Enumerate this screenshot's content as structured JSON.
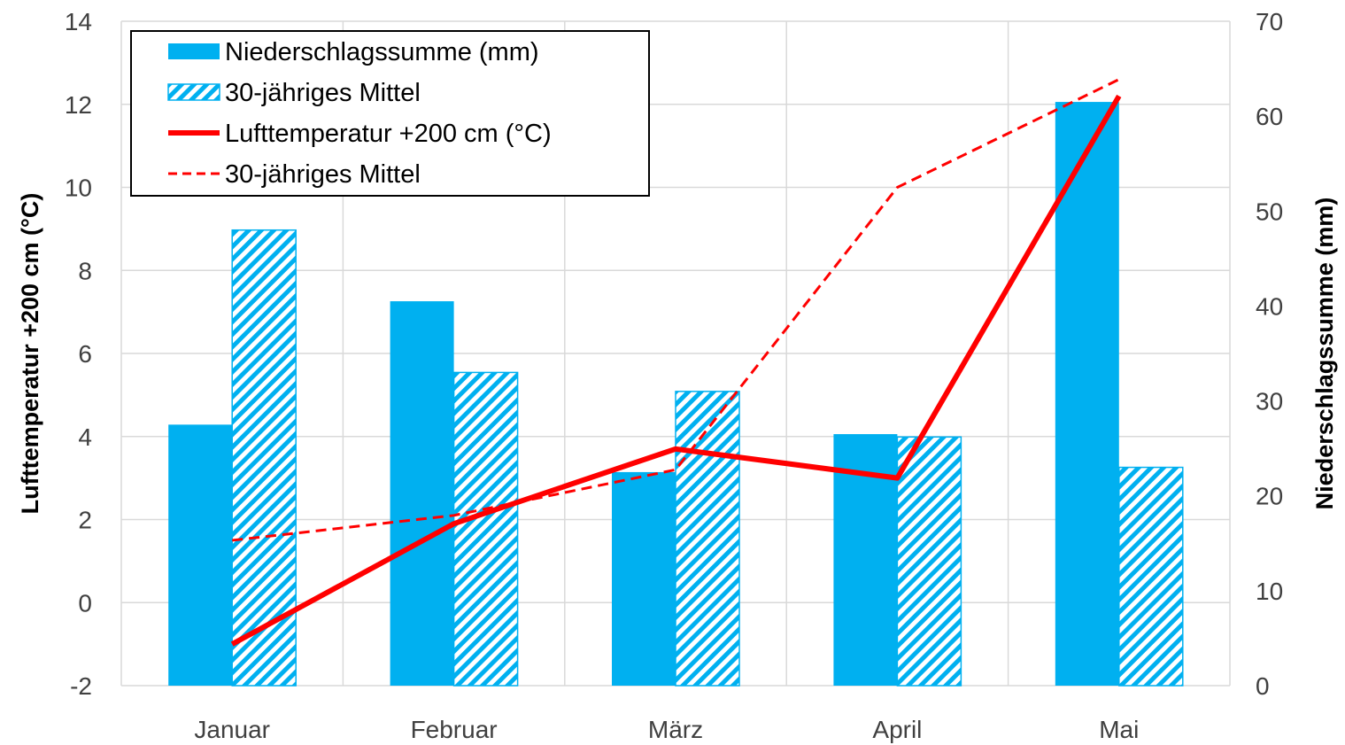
{
  "chart_data": {
    "type": "bar",
    "categories": [
      "Januar",
      "Februar",
      "März",
      "April",
      "Mai"
    ],
    "series": [
      {
        "name": "Niederschlagssumme (mm)",
        "kind": "bar",
        "axis": "right",
        "pattern": "solid",
        "color": "#00B0F0",
        "values": [
          27.5,
          40.5,
          22.5,
          26.5,
          61.5
        ]
      },
      {
        "name": "30-jähriges Mittel",
        "kind": "bar",
        "axis": "right",
        "pattern": "hatched",
        "color": "#00B0F0",
        "values": [
          48,
          33,
          31,
          26.2,
          23
        ]
      },
      {
        "name": "Lufttemperatur +200 cm (°C)",
        "kind": "line",
        "axis": "left",
        "style": "solid",
        "color": "#FF0000",
        "values": [
          -1.0,
          1.9,
          3.7,
          3.0,
          12.2
        ]
      },
      {
        "name": "30-jähriges Mittel",
        "kind": "line",
        "axis": "left",
        "style": "dashed",
        "color": "#FF0000",
        "values": [
          1.5,
          2.1,
          3.2,
          10.0,
          12.6
        ]
      }
    ],
    "y_left": {
      "label": "Lufttemperatur +200 cm (°C)",
      "min": -2,
      "max": 14,
      "ticks": [
        "-2",
        "0",
        "2",
        "4",
        "6",
        "8",
        "10",
        "12",
        "14"
      ]
    },
    "y_right": {
      "label": "Niederschlagssumme (mm)",
      "min": 0,
      "max": 70,
      "ticks": [
        "0",
        "10",
        "20",
        "30",
        "40",
        "50",
        "60",
        "70"
      ]
    },
    "grid": "on",
    "legend_position": "top-left"
  }
}
